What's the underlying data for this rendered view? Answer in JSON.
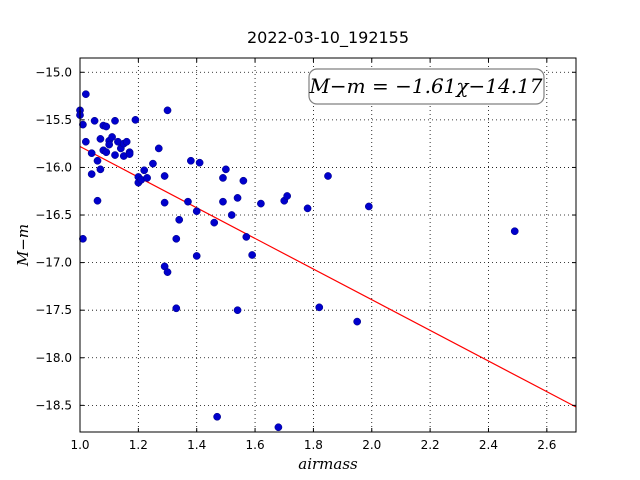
{
  "chart_data": {
    "type": "scatter",
    "title": "2022-03-10_192155",
    "xlabel": "airmass",
    "ylabel": "M−m",
    "xlim": [
      1.0,
      2.7
    ],
    "ylim": [
      -18.78,
      -14.85
    ],
    "y_inverted": true,
    "grid": true,
    "xticks": [
      "1.0",
      "1.2",
      "1.4",
      "1.6",
      "1.8",
      "2.0",
      "2.2",
      "2.4",
      "2.6"
    ],
    "yticks": [
      "−15.0",
      "−15.5",
      "−16.0",
      "−16.5",
      "−17.0",
      "−17.5",
      "−18.0",
      "−18.5"
    ],
    "annotation": "M−m = −1.61χ−14.17",
    "fit": {
      "slope": -1.61,
      "intercept": -14.17,
      "color": "#ff0000"
    },
    "point_color": "#0000cc",
    "points": [
      {
        "x": 1.0,
        "y": -15.4
      },
      {
        "x": 1.0,
        "y": -15.45
      },
      {
        "x": 1.01,
        "y": -15.55
      },
      {
        "x": 1.02,
        "y": -15.23
      },
      {
        "x": 1.01,
        "y": -16.75
      },
      {
        "x": 1.02,
        "y": -15.73
      },
      {
        "x": 1.04,
        "y": -15.85
      },
      {
        "x": 1.04,
        "y": -16.07
      },
      {
        "x": 1.05,
        "y": -15.51
      },
      {
        "x": 1.06,
        "y": -15.93
      },
      {
        "x": 1.06,
        "y": -16.35
      },
      {
        "x": 1.07,
        "y": -16.02
      },
      {
        "x": 1.07,
        "y": -15.7
      },
      {
        "x": 1.08,
        "y": -15.56
      },
      {
        "x": 1.09,
        "y": -15.57
      },
      {
        "x": 1.08,
        "y": -15.82
      },
      {
        "x": 1.09,
        "y": -15.84
      },
      {
        "x": 1.1,
        "y": -15.72
      },
      {
        "x": 1.1,
        "y": -15.76
      },
      {
        "x": 1.11,
        "y": -15.68
      },
      {
        "x": 1.12,
        "y": -15.51
      },
      {
        "x": 1.12,
        "y": -15.87
      },
      {
        "x": 1.13,
        "y": -15.73
      },
      {
        "x": 1.14,
        "y": -15.8
      },
      {
        "x": 1.15,
        "y": -15.75
      },
      {
        "x": 1.15,
        "y": -15.88
      },
      {
        "x": 1.16,
        "y": -15.73
      },
      {
        "x": 1.17,
        "y": -15.84
      },
      {
        "x": 1.17,
        "y": -15.86
      },
      {
        "x": 1.19,
        "y": -15.5
      },
      {
        "x": 1.2,
        "y": -16.1
      },
      {
        "x": 1.2,
        "y": -16.16
      },
      {
        "x": 1.21,
        "y": -16.13
      },
      {
        "x": 1.22,
        "y": -16.03
      },
      {
        "x": 1.23,
        "y": -16.11
      },
      {
        "x": 1.25,
        "y": -15.96
      },
      {
        "x": 1.27,
        "y": -15.8
      },
      {
        "x": 1.29,
        "y": -16.09
      },
      {
        "x": 1.29,
        "y": -16.37
      },
      {
        "x": 1.3,
        "y": -15.4
      },
      {
        "x": 1.29,
        "y": -17.04
      },
      {
        "x": 1.3,
        "y": -17.1
      },
      {
        "x": 1.33,
        "y": -16.75
      },
      {
        "x": 1.33,
        "y": -17.48
      },
      {
        "x": 1.34,
        "y": -16.55
      },
      {
        "x": 1.37,
        "y": -16.36
      },
      {
        "x": 1.38,
        "y": -15.93
      },
      {
        "x": 1.4,
        "y": -16.93
      },
      {
        "x": 1.4,
        "y": -16.46
      },
      {
        "x": 1.41,
        "y": -15.95
      },
      {
        "x": 1.46,
        "y": -16.58
      },
      {
        "x": 1.47,
        "y": -18.62
      },
      {
        "x": 1.49,
        "y": -16.36
      },
      {
        "x": 1.49,
        "y": -16.11
      },
      {
        "x": 1.5,
        "y": -16.02
      },
      {
        "x": 1.52,
        "y": -16.5
      },
      {
        "x": 1.54,
        "y": -16.32
      },
      {
        "x": 1.54,
        "y": -17.5
      },
      {
        "x": 1.56,
        "y": -16.14
      },
      {
        "x": 1.57,
        "y": -16.73
      },
      {
        "x": 1.59,
        "y": -16.92
      },
      {
        "x": 1.62,
        "y": -16.38
      },
      {
        "x": 1.68,
        "y": -18.73
      },
      {
        "x": 1.7,
        "y": -16.35
      },
      {
        "x": 1.71,
        "y": -16.3
      },
      {
        "x": 1.78,
        "y": -16.43
      },
      {
        "x": 1.82,
        "y": -17.47
      },
      {
        "x": 1.85,
        "y": -16.09
      },
      {
        "x": 1.95,
        "y": -17.62
      },
      {
        "x": 1.99,
        "y": -16.41
      },
      {
        "x": 2.49,
        "y": -16.67
      }
    ]
  }
}
